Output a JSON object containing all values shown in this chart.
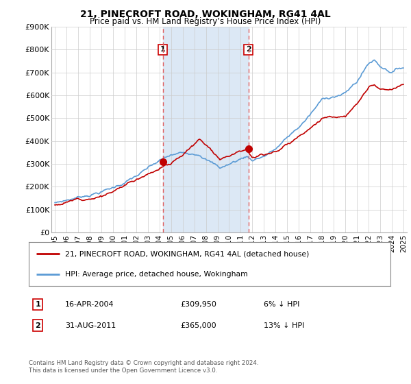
{
  "title": "21, PINECROFT ROAD, WOKINGHAM, RG41 4AL",
  "subtitle": "Price paid vs. HM Land Registry’s House Price Index (HPI)",
  "background_color": "#ffffff",
  "plot_bg_color": "#ffffff",
  "legend_line1": "21, PINECROFT ROAD, WOKINGHAM, RG41 4AL (detached house)",
  "legend_line2": "HPI: Average price, detached house, Wokingham",
  "annotation1_label": "1",
  "annotation1_date": "16-APR-2004",
  "annotation1_price": "£309,950",
  "annotation1_hpi": "6% ↓ HPI",
  "annotation2_label": "2",
  "annotation2_date": "31-AUG-2011",
  "annotation2_price": "£365,000",
  "annotation2_hpi": "13% ↓ HPI",
  "footer": "Contains HM Land Registry data © Crown copyright and database right 2024.\nThis data is licensed under the Open Government Licence v3.0.",
  "hpi_color": "#5b9bd5",
  "price_color": "#c00000",
  "marker_color": "#c00000",
  "vline_color": "#e06060",
  "shade_color": "#dce8f5",
  "sale1_x": 2004.29,
  "sale1_y": 309950,
  "sale2_x": 2011.67,
  "sale2_y": 365000,
  "ylim": [
    0,
    900000
  ],
  "xlim": [
    1994.7,
    2025.3
  ],
  "yticks": [
    0,
    100000,
    200000,
    300000,
    400000,
    500000,
    600000,
    700000,
    800000,
    900000
  ],
  "ytick_labels": [
    "£0",
    "£100K",
    "£200K",
    "£300K",
    "£400K",
    "£500K",
    "£600K",
    "£700K",
    "£800K",
    "£900K"
  ],
  "xtick_years": [
    1995,
    1996,
    1997,
    1998,
    1999,
    2000,
    2001,
    2002,
    2003,
    2004,
    2005,
    2006,
    2007,
    2008,
    2009,
    2010,
    2011,
    2012,
    2013,
    2014,
    2015,
    2016,
    2017,
    2018,
    2019,
    2020,
    2021,
    2022,
    2023,
    2024,
    2025
  ]
}
